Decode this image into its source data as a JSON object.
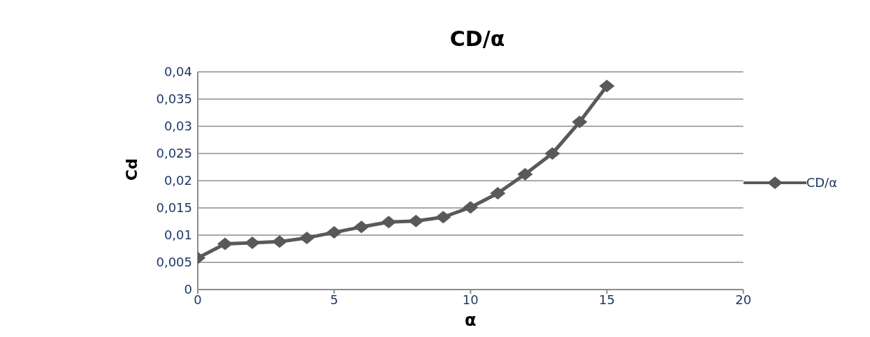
{
  "chart_data": {
    "type": "line",
    "title": "CD/α",
    "xlabel": "α",
    "ylabel": "Cd",
    "x": [
      0,
      1,
      2,
      3,
      4,
      5,
      6,
      7,
      8,
      9,
      10,
      11,
      12,
      13,
      14,
      15
    ],
    "series": [
      {
        "name": "CD/α",
        "color": "#595959",
        "values": [
          0.0058,
          0.0084,
          0.0086,
          0.0088,
          0.0095,
          0.0105,
          0.0115,
          0.0124,
          0.0126,
          0.0133,
          0.0151,
          0.0177,
          0.0212,
          0.025,
          0.0308,
          0.0374
        ]
      }
    ],
    "xlim": [
      0,
      20
    ],
    "xticks": [
      0,
      5,
      10,
      15,
      20
    ],
    "ylim": [
      0,
      0.04
    ],
    "yticks": [
      0,
      {
        "value": 0.005,
        "label": "0,005"
      },
      {
        "value": 0.01,
        "label": "0,01"
      },
      {
        "value": 0.015,
        "label": "0,015"
      },
      {
        "value": 0.02,
        "label": "0,02"
      },
      {
        "value": 0.025,
        "label": "0,025"
      },
      {
        "value": 0.03,
        "label": "0,03"
      },
      {
        "value": 0.035,
        "label": "0,035"
      },
      {
        "value": 0.04,
        "label": "0,04"
      }
    ],
    "grid": "y",
    "legend": "right",
    "marker": "diamond",
    "line_style": "solid"
  }
}
